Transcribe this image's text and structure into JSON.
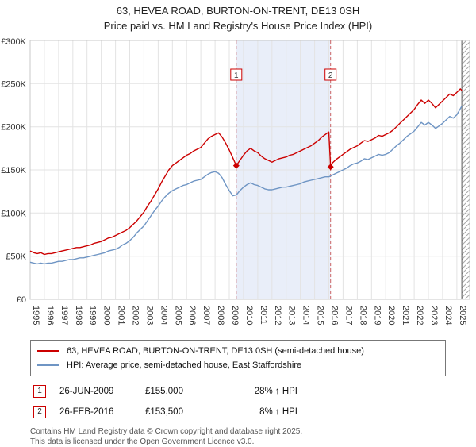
{
  "chart_data": {
    "type": "line",
    "title": "63, HEVEA ROAD, BURTON-ON-TRENT, DE13 0SH",
    "subtitle": "Price paid vs. HM Land Registry's House Price Index (HPI)",
    "x_range": [
      1995,
      2025.9
    ],
    "y_range": [
      0,
      300
    ],
    "y_unit": "GBP thousands",
    "grid": true,
    "legend_position": "bottom",
    "y_ticks": [
      {
        "v": 0,
        "label": "£0"
      },
      {
        "v": 50,
        "label": "£50K"
      },
      {
        "v": 100,
        "label": "£100K"
      },
      {
        "v": 150,
        "label": "£150K"
      },
      {
        "v": 200,
        "label": "£200K"
      },
      {
        "v": 250,
        "label": "£250K"
      },
      {
        "v": 300,
        "label": "£300K"
      }
    ],
    "x_ticks": [
      1995,
      1996,
      1997,
      1998,
      1999,
      2000,
      2001,
      2002,
      2003,
      2004,
      2005,
      2006,
      2007,
      2008,
      2009,
      2010,
      2011,
      2012,
      2013,
      2014,
      2015,
      2016,
      2017,
      2018,
      2019,
      2020,
      2021,
      2022,
      2023,
      2024,
      2025
    ],
    "shaded_region": {
      "from": 2009.49,
      "to": 2016.12,
      "color": "#e9eef9"
    },
    "hatch_region": {
      "from": 2025.35,
      "to": 2025.9
    },
    "sales": [
      {
        "label": "1",
        "x": 2009.49,
        "value": 155,
        "date": "26-JUN-2009",
        "price": "£155,000",
        "vs_hpi": "28% ↑ HPI"
      },
      {
        "label": "2",
        "x": 2016.12,
        "value": 153.5,
        "date": "26-FEB-2016",
        "price": "£153,500",
        "vs_hpi": "8% ↑ HPI"
      }
    ],
    "series": [
      {
        "name": "63, HEVEA ROAD, BURTON-ON-TRENT, DE13 0SH (semi-detached house)",
        "color": "#cc0000",
        "points": [
          [
            1995,
            56
          ],
          [
            1995.25,
            54
          ],
          [
            1995.5,
            53
          ],
          [
            1995.75,
            54
          ],
          [
            1996,
            52
          ],
          [
            1996.25,
            53
          ],
          [
            1996.5,
            53
          ],
          [
            1996.75,
            54
          ],
          [
            1997,
            55
          ],
          [
            1997.25,
            56
          ],
          [
            1997.5,
            57
          ],
          [
            1997.75,
            58
          ],
          [
            1998,
            59
          ],
          [
            1998.25,
            60
          ],
          [
            1998.5,
            60
          ],
          [
            1998.75,
            61
          ],
          [
            1999,
            62
          ],
          [
            1999.25,
            63
          ],
          [
            1999.5,
            65
          ],
          [
            1999.75,
            66
          ],
          [
            2000,
            67
          ],
          [
            2000.25,
            69
          ],
          [
            2000.5,
            71
          ],
          [
            2000.75,
            72
          ],
          [
            2001,
            74
          ],
          [
            2001.25,
            76
          ],
          [
            2001.5,
            78
          ],
          [
            2001.75,
            80
          ],
          [
            2002,
            83
          ],
          [
            2002.25,
            87
          ],
          [
            2002.5,
            91
          ],
          [
            2002.75,
            96
          ],
          [
            2003,
            101
          ],
          [
            2003.25,
            108
          ],
          [
            2003.5,
            114
          ],
          [
            2003.75,
            121
          ],
          [
            2004,
            128
          ],
          [
            2004.25,
            136
          ],
          [
            2004.5,
            143
          ],
          [
            2004.75,
            150
          ],
          [
            2005,
            155
          ],
          [
            2005.25,
            158
          ],
          [
            2005.5,
            161
          ],
          [
            2005.75,
            164
          ],
          [
            2006,
            167
          ],
          [
            2006.25,
            169
          ],
          [
            2006.5,
            172
          ],
          [
            2006.75,
            174
          ],
          [
            2007,
            176
          ],
          [
            2007.25,
            181
          ],
          [
            2007.5,
            186
          ],
          [
            2007.75,
            189
          ],
          [
            2008,
            191
          ],
          [
            2008.25,
            193
          ],
          [
            2008.5,
            188
          ],
          [
            2008.75,
            181
          ],
          [
            2009,
            173
          ],
          [
            2009.25,
            164
          ],
          [
            2009.49,
            155
          ],
          [
            2009.75,
            161
          ],
          [
            2010,
            167
          ],
          [
            2010.25,
            172
          ],
          [
            2010.5,
            175
          ],
          [
            2010.75,
            172
          ],
          [
            2011,
            170
          ],
          [
            2011.25,
            166
          ],
          [
            2011.5,
            163
          ],
          [
            2011.75,
            161
          ],
          [
            2012,
            159
          ],
          [
            2012.25,
            161
          ],
          [
            2012.5,
            163
          ],
          [
            2012.75,
            164
          ],
          [
            2013,
            165
          ],
          [
            2013.25,
            167
          ],
          [
            2013.5,
            168
          ],
          [
            2013.75,
            170
          ],
          [
            2014,
            172
          ],
          [
            2014.25,
            174
          ],
          [
            2014.5,
            176
          ],
          [
            2014.75,
            178
          ],
          [
            2015,
            181
          ],
          [
            2015.25,
            184
          ],
          [
            2015.5,
            188
          ],
          [
            2015.75,
            191
          ],
          [
            2016,
            194
          ],
          [
            2016.12,
            153.5
          ],
          [
            2016.25,
            158
          ],
          [
            2016.5,
            162
          ],
          [
            2016.75,
            165
          ],
          [
            2017,
            168
          ],
          [
            2017.25,
            171
          ],
          [
            2017.5,
            174
          ],
          [
            2017.75,
            176
          ],
          [
            2018,
            178
          ],
          [
            2018.25,
            181
          ],
          [
            2018.5,
            184
          ],
          [
            2018.75,
            183
          ],
          [
            2019,
            185
          ],
          [
            2019.25,
            187
          ],
          [
            2019.5,
            190
          ],
          [
            2019.75,
            189
          ],
          [
            2020,
            191
          ],
          [
            2020.25,
            193
          ],
          [
            2020.5,
            196
          ],
          [
            2020.75,
            200
          ],
          [
            2021,
            204
          ],
          [
            2021.25,
            208
          ],
          [
            2021.5,
            212
          ],
          [
            2021.75,
            216
          ],
          [
            2022,
            220
          ],
          [
            2022.25,
            226
          ],
          [
            2022.5,
            231
          ],
          [
            2022.75,
            227
          ],
          [
            2023,
            231
          ],
          [
            2023.25,
            227
          ],
          [
            2023.5,
            222
          ],
          [
            2023.75,
            226
          ],
          [
            2024,
            230
          ],
          [
            2024.25,
            234
          ],
          [
            2024.5,
            238
          ],
          [
            2024.75,
            236
          ],
          [
            2025,
            240
          ],
          [
            2025.25,
            244
          ],
          [
            2025.35,
            242
          ]
        ]
      },
      {
        "name": "HPI: Average price, semi-detached house, East Staffordshire",
        "color": "#6f95c4",
        "points": [
          [
            1995,
            43
          ],
          [
            1995.25,
            42
          ],
          [
            1995.5,
            41
          ],
          [
            1995.75,
            42
          ],
          [
            1996,
            41
          ],
          [
            1996.25,
            42
          ],
          [
            1996.5,
            42
          ],
          [
            1996.75,
            43
          ],
          [
            1997,
            44
          ],
          [
            1997.25,
            44
          ],
          [
            1997.5,
            45
          ],
          [
            1997.75,
            46
          ],
          [
            1998,
            46
          ],
          [
            1998.25,
            47
          ],
          [
            1998.5,
            48
          ],
          [
            1998.75,
            48
          ],
          [
            1999,
            49
          ],
          [
            1999.25,
            50
          ],
          [
            1999.5,
            51
          ],
          [
            1999.75,
            52
          ],
          [
            2000,
            53
          ],
          [
            2000.25,
            54
          ],
          [
            2000.5,
            56
          ],
          [
            2000.75,
            57
          ],
          [
            2001,
            58
          ],
          [
            2001.25,
            60
          ],
          [
            2001.5,
            63
          ],
          [
            2001.75,
            65
          ],
          [
            2002,
            68
          ],
          [
            2002.25,
            72
          ],
          [
            2002.5,
            77
          ],
          [
            2002.75,
            81
          ],
          [
            2003,
            85
          ],
          [
            2003.25,
            91
          ],
          [
            2003.5,
            97
          ],
          [
            2003.75,
            103
          ],
          [
            2004,
            108
          ],
          [
            2004.25,
            114
          ],
          [
            2004.5,
            119
          ],
          [
            2004.75,
            123
          ],
          [
            2005,
            126
          ],
          [
            2005.25,
            128
          ],
          [
            2005.5,
            130
          ],
          [
            2005.75,
            132
          ],
          [
            2006,
            133
          ],
          [
            2006.25,
            135
          ],
          [
            2006.5,
            137
          ],
          [
            2006.75,
            138
          ],
          [
            2007,
            139
          ],
          [
            2007.25,
            142
          ],
          [
            2007.5,
            145
          ],
          [
            2007.75,
            147
          ],
          [
            2008,
            148
          ],
          [
            2008.25,
            146
          ],
          [
            2008.5,
            141
          ],
          [
            2008.75,
            133
          ],
          [
            2009,
            126
          ],
          [
            2009.25,
            120
          ],
          [
            2009.5,
            121
          ],
          [
            2009.75,
            126
          ],
          [
            2010,
            130
          ],
          [
            2010.25,
            133
          ],
          [
            2010.5,
            135
          ],
          [
            2010.75,
            133
          ],
          [
            2011,
            132
          ],
          [
            2011.25,
            130
          ],
          [
            2011.5,
            128
          ],
          [
            2011.75,
            127
          ],
          [
            2012,
            127
          ],
          [
            2012.25,
            128
          ],
          [
            2012.5,
            129
          ],
          [
            2012.75,
            130
          ],
          [
            2013,
            130
          ],
          [
            2013.25,
            131
          ],
          [
            2013.5,
            132
          ],
          [
            2013.75,
            133
          ],
          [
            2014,
            134
          ],
          [
            2014.25,
            136
          ],
          [
            2014.5,
            137
          ],
          [
            2014.75,
            138
          ],
          [
            2015,
            139
          ],
          [
            2015.25,
            140
          ],
          [
            2015.5,
            141
          ],
          [
            2015.75,
            142
          ],
          [
            2016,
            142
          ],
          [
            2016.25,
            144
          ],
          [
            2016.5,
            146
          ],
          [
            2016.75,
            148
          ],
          [
            2017,
            150
          ],
          [
            2017.25,
            152
          ],
          [
            2017.5,
            155
          ],
          [
            2017.75,
            157
          ],
          [
            2018,
            158
          ],
          [
            2018.25,
            160
          ],
          [
            2018.5,
            163
          ],
          [
            2018.75,
            162
          ],
          [
            2019,
            164
          ],
          [
            2019.25,
            166
          ],
          [
            2019.5,
            168
          ],
          [
            2019.75,
            167
          ],
          [
            2020,
            168
          ],
          [
            2020.25,
            170
          ],
          [
            2020.5,
            174
          ],
          [
            2020.75,
            178
          ],
          [
            2021,
            181
          ],
          [
            2021.25,
            185
          ],
          [
            2021.5,
            189
          ],
          [
            2021.75,
            192
          ],
          [
            2022,
            195
          ],
          [
            2022.25,
            200
          ],
          [
            2022.5,
            205
          ],
          [
            2022.75,
            202
          ],
          [
            2023,
            205
          ],
          [
            2023.25,
            202
          ],
          [
            2023.5,
            198
          ],
          [
            2023.75,
            201
          ],
          [
            2024,
            204
          ],
          [
            2024.25,
            208
          ],
          [
            2024.5,
            212
          ],
          [
            2024.75,
            210
          ],
          [
            2025,
            214
          ],
          [
            2025.25,
            221
          ],
          [
            2025.35,
            224
          ]
        ]
      }
    ]
  },
  "footer": {
    "line1": "Contains HM Land Registry data © Crown copyright and database right 2025.",
    "line2": "This data is licensed under the Open Government Licence v3.0."
  }
}
